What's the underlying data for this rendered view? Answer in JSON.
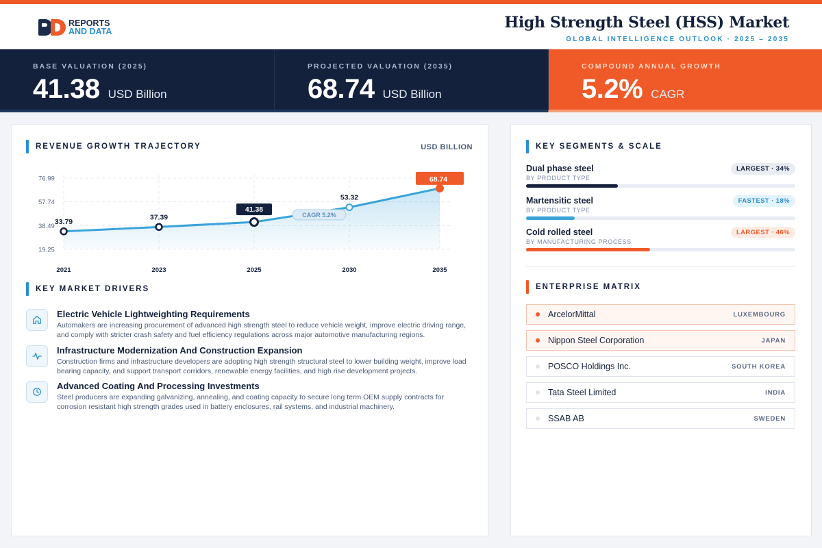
{
  "brand": {
    "line1": "REPORTS",
    "line2": "AND DATA"
  },
  "header": {
    "title": "High Strength Steel (HSS) Market",
    "subtitle": "GLOBAL INTELLIGENCE OUTLOOK · 2025 – 2035"
  },
  "kpis": [
    {
      "label": "BASE VALUATION (2025)",
      "value": "41.38",
      "unit": "USD Billion"
    },
    {
      "label": "PROJECTED VALUATION (2035)",
      "value": "68.74",
      "unit": "USD Billion"
    },
    {
      "label": "COMPOUND ANNUAL GROWTH",
      "value": "5.2%",
      "unit": "CAGR"
    }
  ],
  "revenue": {
    "title": "REVENUE GROWTH TRAJECTORY",
    "unit": "USD BILLION"
  },
  "chart_data": {
    "type": "area",
    "categories": [
      "2021",
      "2023",
      "2025",
      "2030",
      "2035"
    ],
    "series": [
      {
        "values": [
          33.79,
          37.39,
          41.38,
          53.32,
          68.74
        ]
      }
    ],
    "data_labels": [
      "33.79",
      "37.39",
      "41.38",
      "53.32",
      "68.74"
    ],
    "y_ticks": [
      "19.25",
      "38.49",
      "57.74",
      "76.99"
    ],
    "ylim": [
      19.25,
      76.99
    ],
    "annotation": "CAGR 5.2%",
    "grid": true,
    "colors": {
      "line": "#3aa3d9",
      "highlight_base": "#14213d",
      "highlight_end": "#f05a28"
    }
  },
  "drivers": {
    "title": "KEY MARKET DRIVERS",
    "items": [
      {
        "icon": "home-icon",
        "title": "Electric Vehicle Lightweighting Requirements",
        "text": "Automakers are increasing procurement of advanced high strength steel to reduce vehicle weight, improve electric driving range, and comply with stricter crash safety and fuel efficiency regulations across major automotive manufacturing regions."
      },
      {
        "icon": "activity-icon",
        "title": "Infrastructure Modernization And Construction Expansion",
        "text": "Construction firms and infrastructure developers are adopting high strength structural steel to lower building weight, improve load bearing capacity, and support transport corridors, renewable energy facilities, and high rise development projects."
      },
      {
        "icon": "clock-icon",
        "title": "Advanced Coating And Processing Investments",
        "text": "Steel producers are expanding galvanizing, annealing, and coating capacity to secure long term OEM supply contracts for corrosion resistant high strength grades used in battery enclosures, rail systems, and industrial machinery."
      }
    ]
  },
  "segments": {
    "title": "KEY SEGMENTS & SCALE",
    "items": [
      {
        "name": "Dual phase steel",
        "category": "BY PRODUCT TYPE",
        "badge": "LARGEST · 34%",
        "share": 0.34,
        "color": "#14213d"
      },
      {
        "name": "Martensitic steel",
        "category": "BY PRODUCT TYPE",
        "badge": "FASTEST · 18%",
        "share": 0.18,
        "color": "#3aa3d9"
      },
      {
        "name": "Cold rolled steel",
        "category": "BY MANUFACTURING PROCESS",
        "badge": "LARGEST · 46%",
        "share": 0.46,
        "color": "#f05a28"
      }
    ]
  },
  "enterprise": {
    "title": "ENTERPRISE MATRIX",
    "items": [
      {
        "name": "ArcelorMittal",
        "country": "LUXEMBOURG"
      },
      {
        "name": "Nippon Steel Corporation",
        "country": "JAPAN"
      },
      {
        "name": "POSCO Holdings Inc.",
        "country": "SOUTH KOREA"
      },
      {
        "name": "Tata Steel Limited",
        "country": "INDIA"
      },
      {
        "name": "SSAB AB",
        "country": "SWEDEN"
      }
    ]
  }
}
